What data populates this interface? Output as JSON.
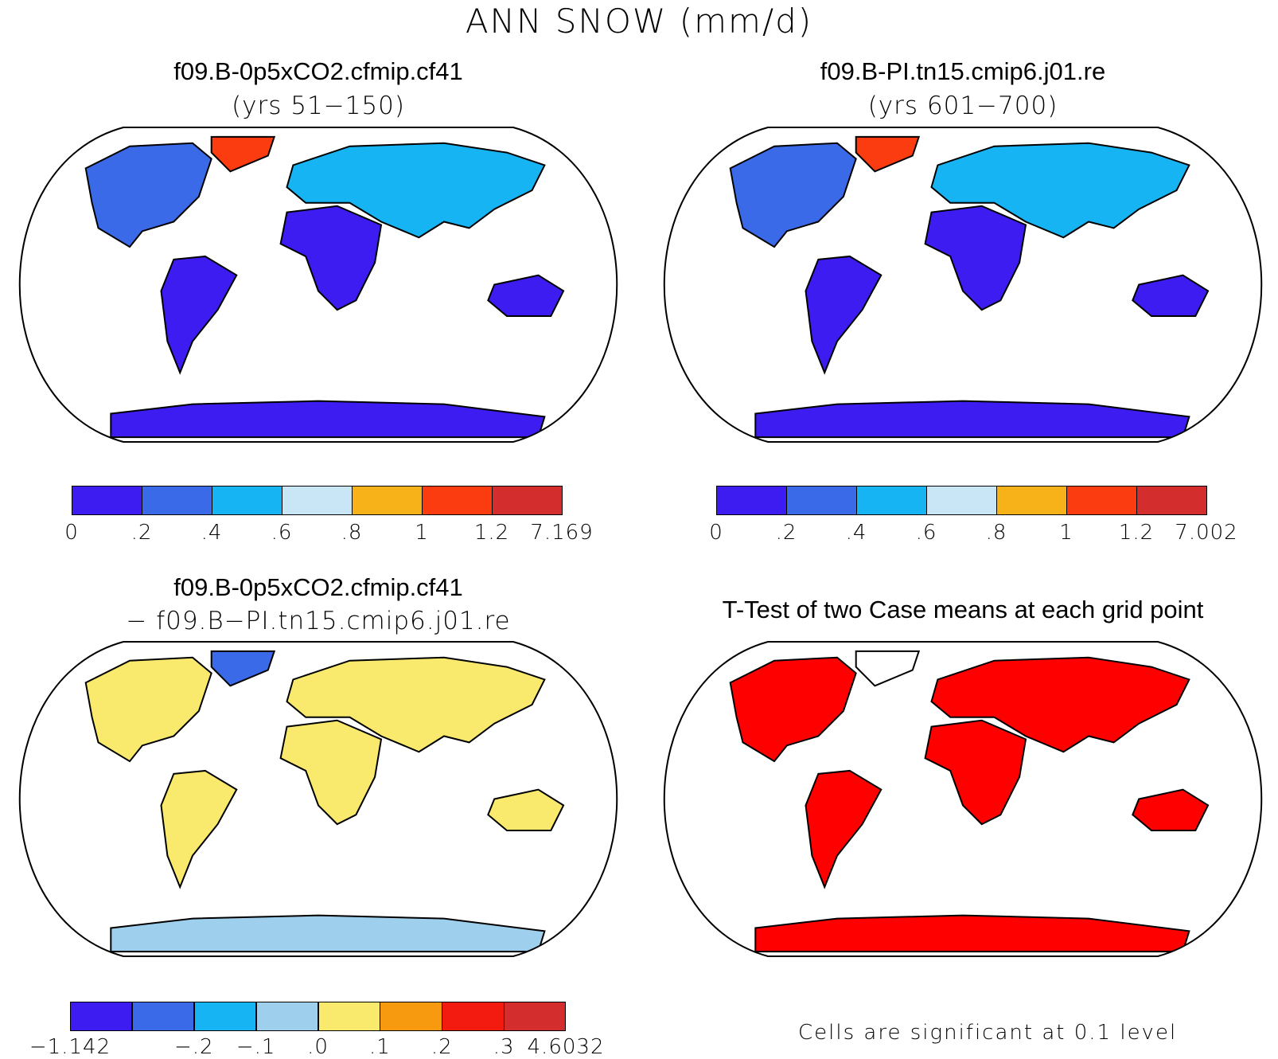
{
  "figure": {
    "title": "ANN SNOW (mm/d)"
  },
  "panels": [
    {
      "id": "case1",
      "title": "f09.B-0p5xCO2.cfmip.cf41",
      "subtitle": "(yrs 51−150)",
      "colorbar": {
        "ticks": [
          "0",
          ".2",
          ".4",
          ".6",
          ".8",
          "1",
          "1.2",
          "7.169"
        ],
        "colors": [
          "#3d1cf2",
          "#3a6ae8",
          "#16b4f2",
          "#c8e6f5",
          "#f7b21a",
          "#fb3c10",
          "#d42d2d"
        ]
      }
    },
    {
      "id": "case2",
      "title": "f09.B-PI.tn15.cmip6.j01.re",
      "subtitle": "(yrs 601−700)",
      "colorbar": {
        "ticks": [
          "0",
          ".2",
          ".4",
          ".6",
          ".8",
          "1",
          "1.2",
          "7.002"
        ],
        "colors": [
          "#3d1cf2",
          "#3a6ae8",
          "#16b4f2",
          "#c8e6f5",
          "#f7b21a",
          "#fb3c10",
          "#d42d2d"
        ]
      }
    },
    {
      "id": "diff",
      "title": "f09.B-0p5xCO2.cfmip.cf41",
      "subtitle": "− f09.B−PI.tn15.cmip6.j01.re",
      "colorbar": {
        "ticks": [
          "−1.142",
          "",
          "−.2",
          "−.1",
          ".0",
          ".1",
          ".2",
          ".3",
          "4.6032"
        ],
        "colors": [
          "#3d1cf2",
          "#3a6ae8",
          "#16b4f2",
          "#9ed0ee",
          "#f9ea6e",
          "#f79a0f",
          "#f31a10",
          "#d42d2d"
        ]
      }
    },
    {
      "id": "ttest",
      "title": "T-Test of two Case means at each grid point",
      "note": "Cells are significant at 0.1 level",
      "color": "#ff0000"
    }
  ]
}
